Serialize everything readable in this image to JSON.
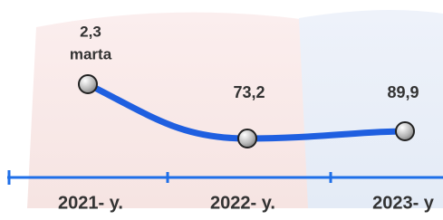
{
  "point_labels": [
    [
      "2,3",
      "marta"
    ],
    [
      "73,2"
    ],
    [
      "89,9"
    ]
  ],
  "categories": [
    "2021- y.",
    "2022- y.",
    "2023- y"
  ]
}
